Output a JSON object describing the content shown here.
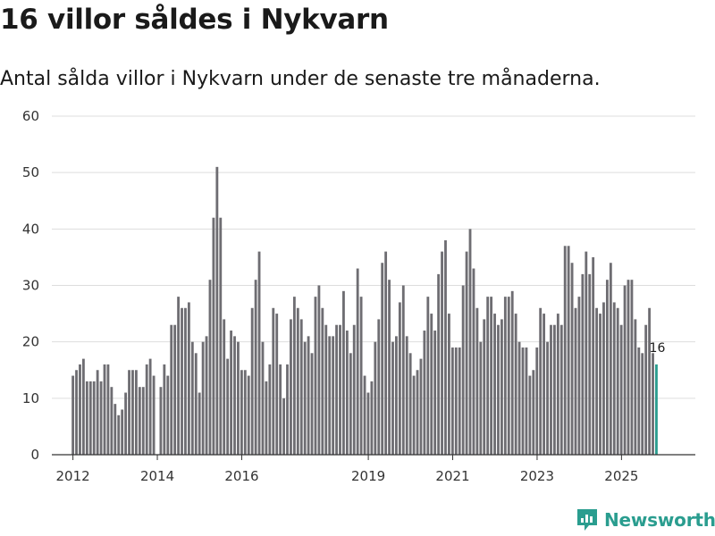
{
  "header": {
    "title": "16 villor såldes i Nykvarn",
    "subtitle": "Antal sålda villor i Nykvarn under de senaste tre månaderna."
  },
  "brand": {
    "name": "Newsworthy"
  },
  "colors": {
    "bar": "#6e6d72",
    "highlight": "#2a9d8f",
    "grid": "#dddddd",
    "axis": "#333333"
  },
  "chart_data": {
    "type": "bar",
    "title": "16 villor såldes i Nykvarn",
    "xlabel": "",
    "ylabel": "",
    "ylim": [
      0,
      60
    ],
    "yticks": [
      0,
      10,
      20,
      30,
      40,
      50,
      60
    ],
    "xlim": [
      2011.5,
      2026.75
    ],
    "xticks": [
      2012,
      2014,
      2016,
      2019,
      2021,
      2023,
      2025
    ],
    "x_start": 2012,
    "x_step": 0.0833,
    "values": [
      14,
      15,
      16,
      17,
      13,
      13,
      13,
      15,
      13,
      16,
      16,
      12,
      9,
      7,
      8,
      11,
      15,
      15,
      15,
      12,
      12,
      16,
      17,
      14,
      0,
      12,
      16,
      14,
      23,
      23,
      28,
      26,
      26,
      27,
      20,
      18,
      11,
      20,
      21,
      31,
      42,
      51,
      42,
      24,
      17,
      22,
      21,
      20,
      15,
      15,
      14,
      26,
      31,
      36,
      20,
      13,
      16,
      26,
      25,
      16,
      10,
      16,
      24,
      28,
      26,
      24,
      20,
      21,
      18,
      28,
      30,
      26,
      23,
      21,
      21,
      23,
      23,
      29,
      22,
      18,
      23,
      33,
      28,
      14,
      11,
      13,
      20,
      24,
      34,
      36,
      31,
      20,
      21,
      27,
      30,
      21,
      18,
      14,
      15,
      17,
      22,
      28,
      25,
      22,
      32,
      36,
      38,
      25,
      19,
      19,
      19,
      30,
      36,
      40,
      33,
      26,
      20,
      24,
      28,
      28,
      25,
      23,
      24,
      28,
      28,
      29,
      25,
      20,
      19,
      19,
      14,
      15,
      19,
      26,
      25,
      20,
      23,
      23,
      25,
      23,
      37,
      37,
      34,
      26,
      28,
      32,
      36,
      32,
      35,
      26,
      25,
      27,
      31,
      34,
      27,
      26,
      23,
      30,
      31,
      31,
      24,
      19,
      18,
      23,
      26,
      18,
      16
    ],
    "highlight_last": true,
    "last_label": "16"
  }
}
